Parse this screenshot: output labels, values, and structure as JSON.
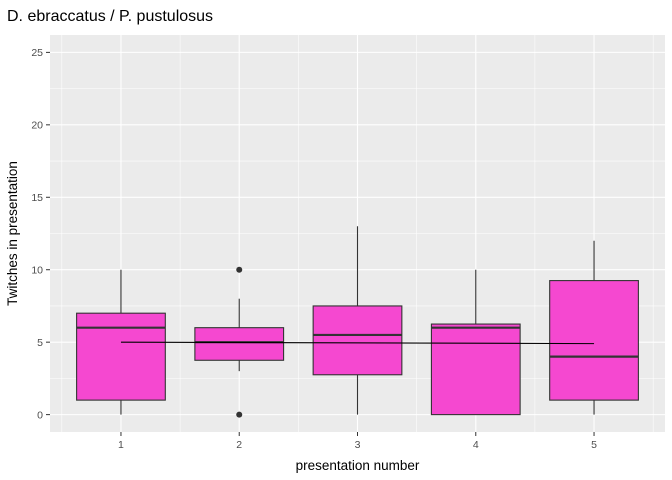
{
  "chart_data": {
    "type": "boxplot",
    "title": "D. ebraccatus / P. pustulosus",
    "xlabel": "presentation number",
    "ylabel": "Twitches in presentation",
    "categories": [
      "1",
      "2",
      "3",
      "4",
      "5"
    ],
    "ylim": [
      -1.2,
      26.2
    ],
    "yticks": [
      0,
      5,
      10,
      15,
      20,
      25
    ],
    "grid": true,
    "legend": "none",
    "box_fill": "#f548d0",
    "box_stroke": "#333333",
    "panel_bg": "#ebebeb",
    "grid_color": "#ffffff",
    "boxes": [
      {
        "category": "1",
        "whisker_low": 0,
        "q1": 1,
        "median": 6,
        "q3": 7,
        "whisker_high": 10,
        "outliers": []
      },
      {
        "category": "2",
        "whisker_low": 3,
        "q1": 3.75,
        "median": 5,
        "q3": 6,
        "whisker_high": 8,
        "outliers": [
          10,
          0
        ]
      },
      {
        "category": "3",
        "whisker_low": 0,
        "q1": 2.75,
        "median": 5.5,
        "q3": 7.5,
        "whisker_high": 13,
        "outliers": []
      },
      {
        "category": "4",
        "whisker_low": 0,
        "q1": 0,
        "median": 6,
        "q3": 6.25,
        "whisker_high": 10,
        "outliers": []
      },
      {
        "category": "5",
        "whisker_low": 0,
        "q1": 1,
        "median": 4,
        "q3": 9.25,
        "whisker_high": 12,
        "outliers": []
      }
    ],
    "reference_line": {
      "x": [
        1,
        5
      ],
      "y": [
        5,
        4.9
      ]
    }
  }
}
